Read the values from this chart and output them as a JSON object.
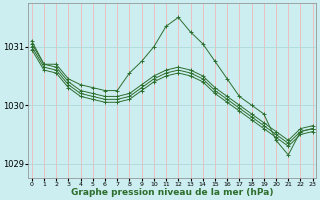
{
  "bg_color": "#cceef0",
  "grid_color_v": "#f0b8b8",
  "grid_color_h": "#b0d8d8",
  "line_color": "#2d6e2d",
  "marker": "+",
  "xlabel": "Graphe pression niveau de la mer (hPa)",
  "xlabel_fontsize": 6.5,
  "yticks": [
    1029,
    1030,
    1031
  ],
  "xticks": [
    0,
    1,
    2,
    3,
    4,
    5,
    6,
    7,
    8,
    9,
    10,
    11,
    12,
    13,
    14,
    15,
    16,
    17,
    18,
    19,
    20,
    21,
    22,
    23
  ],
  "xlim": [
    -0.3,
    23.3
  ],
  "ylim": [
    1028.75,
    1031.75
  ],
  "series": [
    [
      1031.05,
      1030.7,
      1030.7,
      1030.45,
      1030.35,
      1030.3,
      1030.25,
      1030.25,
      1030.55,
      1030.75,
      1031.0,
      1031.35,
      1031.5,
      1031.25,
      1031.05,
      1030.75,
      1030.45,
      1030.15,
      1030.0,
      1029.85,
      1029.4,
      1029.15,
      1029.55,
      1029.6
    ],
    [
      1031.1,
      1030.7,
      1030.65,
      1030.4,
      1030.25,
      1030.2,
      1030.15,
      1030.15,
      1030.2,
      1030.35,
      1030.5,
      1030.6,
      1030.65,
      1030.6,
      1030.5,
      1030.3,
      1030.15,
      1030.0,
      1029.85,
      1029.7,
      1029.55,
      1029.4,
      1029.6,
      1029.65
    ],
    [
      1031.0,
      1030.65,
      1030.6,
      1030.35,
      1030.2,
      1030.15,
      1030.1,
      1030.1,
      1030.15,
      1030.3,
      1030.45,
      1030.55,
      1030.6,
      1030.55,
      1030.45,
      1030.25,
      1030.1,
      1029.95,
      1029.8,
      1029.65,
      1029.5,
      1029.35,
      1029.55,
      1029.6
    ],
    [
      1030.95,
      1030.6,
      1030.55,
      1030.3,
      1030.15,
      1030.1,
      1030.05,
      1030.05,
      1030.1,
      1030.25,
      1030.4,
      1030.5,
      1030.55,
      1030.5,
      1030.4,
      1030.2,
      1030.05,
      1029.9,
      1029.75,
      1029.6,
      1029.45,
      1029.3,
      1029.5,
      1029.55
    ]
  ]
}
